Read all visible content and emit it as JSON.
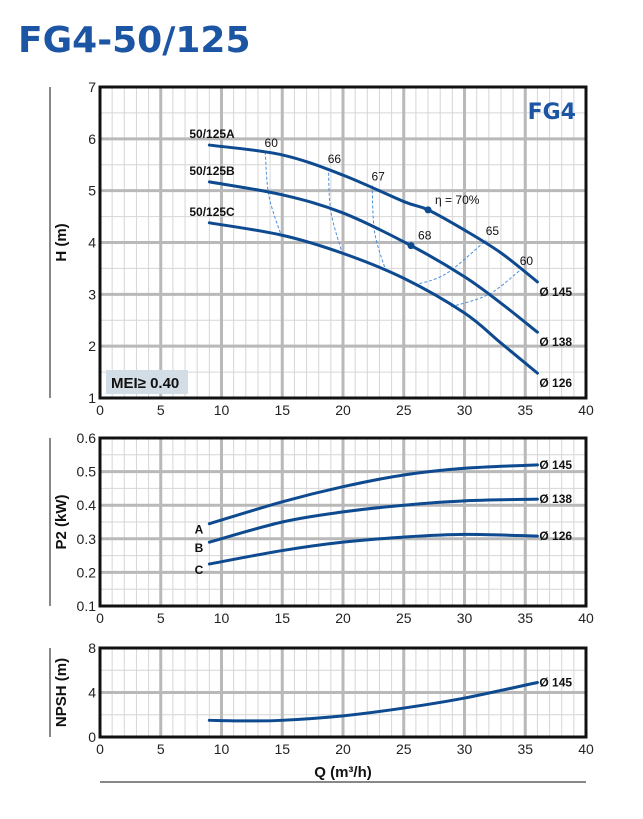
{
  "title": "FG4-50/125",
  "colors": {
    "curve": "#0d4a8f",
    "title": "#1b55a3",
    "efficiency": "#4a90d9",
    "grid_major": "#b9b9b9",
    "grid_minor": "#d6d6d6",
    "mei_bg": "#d3dde6"
  },
  "chart_data": [
    {
      "id": "head",
      "type": "line",
      "ylabel": "H (m)",
      "xlim": [
        0,
        40
      ],
      "ylim": [
        1,
        7
      ],
      "xticks": [
        "0",
        "5",
        "10",
        "15",
        "20",
        "25",
        "30",
        "35",
        "40"
      ],
      "yticks": [
        "1",
        "2",
        "3",
        "4",
        "5",
        "6",
        "7"
      ],
      "grid": true,
      "badge": "FG4",
      "mei": "MEI≥ 0.40",
      "series": [
        {
          "name": "50/125A",
          "end_label": "Ø 145",
          "x": [
            9,
            15,
            20,
            25,
            27,
            30,
            33,
            36
          ],
          "y": [
            5.88,
            5.69,
            5.3,
            4.79,
            4.63,
            4.24,
            3.8,
            3.24
          ]
        },
        {
          "name": "50/125B",
          "end_label": "Ø 138",
          "x": [
            9,
            15,
            20,
            25.6,
            30,
            33,
            36
          ],
          "y": [
            5.17,
            4.92,
            4.57,
            3.94,
            3.34,
            2.83,
            2.27
          ]
        },
        {
          "name": "50/125C",
          "end_label": "Ø 126",
          "x": [
            9,
            15,
            20,
            25,
            30,
            33,
            36
          ],
          "y": [
            4.38,
            4.14,
            3.79,
            3.31,
            2.64,
            2.06,
            1.48
          ]
        }
      ],
      "efficiency_curves": [
        {
          "label": "60",
          "x": [
            13.6,
            13.9,
            14.95
          ],
          "y": [
            5.75,
            4.9,
            4.11
          ]
        },
        {
          "label": "66",
          "x": [
            18.8,
            19.0,
            19.9
          ],
          "y": [
            5.44,
            4.6,
            3.82
          ]
        },
        {
          "label": "67",
          "x": [
            22.4,
            22.6,
            23.5
          ],
          "y": [
            5.1,
            4.2,
            3.47
          ]
        },
        {
          "label": "65",
          "x": [
            25.9,
            28.5,
            31.8
          ],
          "y": [
            3.18,
            3.4,
            4.05
          ]
        },
        {
          "label": "60",
          "x": [
            28.9,
            32,
            34.6
          ],
          "y": [
            2.76,
            3.0,
            3.47
          ]
        }
      ],
      "points": [
        {
          "label": "η = 70%",
          "x": 27,
          "y": 4.63
        },
        {
          "label": "68",
          "x": 25.6,
          "y": 3.94
        }
      ]
    },
    {
      "id": "power",
      "type": "line",
      "ylabel": "P2 (kW)",
      "xlim": [
        0,
        40
      ],
      "ylim": [
        0.1,
        0.6
      ],
      "xticks": [
        "0",
        "5",
        "10",
        "15",
        "20",
        "25",
        "30",
        "35",
        "40"
      ],
      "yticks": [
        "0.1",
        "0.2",
        "0.3",
        "0.4",
        "0.5",
        "0.6"
      ],
      "grid": true,
      "series": [
        {
          "name": "A",
          "end_label": "Ø 145",
          "x": [
            9,
            15,
            20,
            25,
            30,
            36
          ],
          "y": [
            0.345,
            0.41,
            0.455,
            0.49,
            0.51,
            0.52
          ]
        },
        {
          "name": "B",
          "end_label": "Ø 138",
          "x": [
            9,
            15,
            20,
            25,
            30,
            36
          ],
          "y": [
            0.29,
            0.35,
            0.38,
            0.4,
            0.413,
            0.418
          ]
        },
        {
          "name": "C",
          "end_label": "Ø 126",
          "x": [
            9,
            15,
            20,
            25,
            30,
            36
          ],
          "y": [
            0.225,
            0.265,
            0.29,
            0.305,
            0.313,
            0.308
          ]
        }
      ]
    },
    {
      "id": "npsh",
      "type": "line",
      "ylabel": "NPSH (m)",
      "xlabel": "Q (m³/h)",
      "xlim": [
        0,
        40
      ],
      "ylim": [
        0,
        8
      ],
      "xticks": [
        "0",
        "5",
        "10",
        "15",
        "20",
        "25",
        "30",
        "35",
        "40"
      ],
      "yticks": [
        "0",
        "4",
        "8"
      ],
      "grid": true,
      "series": [
        {
          "end_label": "Ø 145",
          "x": [
            9,
            12,
            15,
            20,
            25,
            30,
            36
          ],
          "y": [
            1.5,
            1.45,
            1.5,
            1.9,
            2.6,
            3.5,
            4.9
          ]
        }
      ]
    }
  ]
}
